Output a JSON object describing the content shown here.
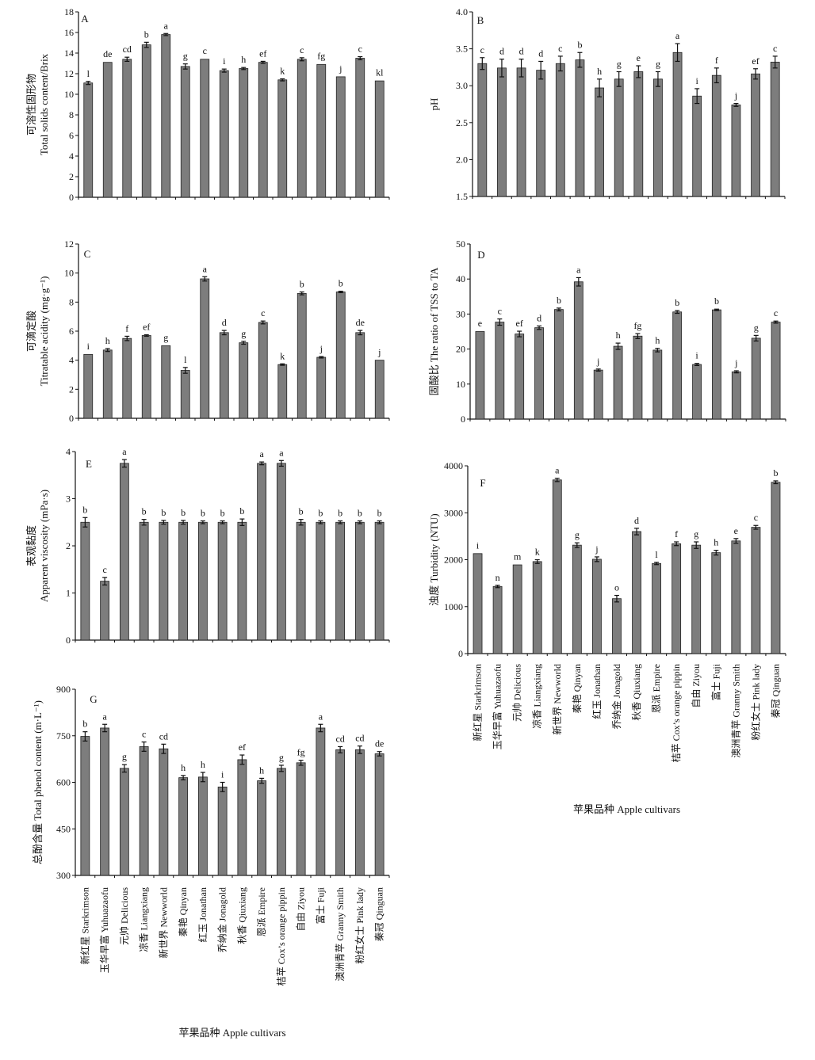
{
  "cultivars": [
    "新红星 Starkrimson",
    "玉华早富 Yuhuazaofu",
    "元帅 Delicious",
    "凉香 Liangxiang",
    "新世界 Newworld",
    "秦艳 Qinyan",
    "红玉 Jonathan",
    "乔纳金 Jonagold",
    "秋香 Qiuxiang",
    "恩派 Empire",
    "桔苹 Cox’s orange pippin",
    "自由 Ziyou",
    "富士 Fuji",
    "澳洲青苹 Granny Smith",
    "粉红女士 Pink lady",
    "秦冠 Qinguan"
  ],
  "x_axis_label": "苹果品种 Apple cultivars",
  "bar_color": "#7d7d7d",
  "chart_data": [
    {
      "type": "bar",
      "panel": "A",
      "ylabel_lines": [
        "可溶性固形物",
        "Total solids content/Brix"
      ],
      "ylim": [
        0,
        18
      ],
      "yticks": [
        "0",
        "2",
        "4",
        "6",
        "8",
        "10",
        "12",
        "14",
        "16",
        "18"
      ],
      "values": [
        11.1,
        13.1,
        13.4,
        14.8,
        15.8,
        12.7,
        13.4,
        12.3,
        12.5,
        13.1,
        11.4,
        13.4,
        12.9,
        11.7,
        13.5,
        11.3
      ],
      "errors": [
        0.15,
        0.05,
        0.2,
        0.25,
        0.1,
        0.25,
        0.05,
        0.15,
        0.1,
        0.1,
        0.1,
        0.15,
        0.05,
        0.05,
        0.15,
        0.05
      ],
      "letters": [
        "l",
        "de",
        "cd",
        "b",
        "a",
        "g",
        "c",
        "i",
        "h",
        "ef",
        "k",
        "c",
        "fg",
        "j",
        "c",
        "kl"
      ]
    },
    {
      "type": "bar",
      "panel": "B",
      "ylabel_lines": [
        "pH"
      ],
      "ylim": [
        1.5,
        4.0
      ],
      "yticks": [
        "1.5",
        "2.0",
        "2.5",
        "3.0",
        "3.5",
        "4.0"
      ],
      "values": [
        3.3,
        3.24,
        3.24,
        3.21,
        3.3,
        3.35,
        2.97,
        3.09,
        3.19,
        3.09,
        3.45,
        2.86,
        3.14,
        2.74,
        3.16,
        3.32
      ],
      "errors": [
        0.08,
        0.12,
        0.12,
        0.12,
        0.1,
        0.1,
        0.12,
        0.1,
        0.08,
        0.1,
        0.12,
        0.1,
        0.1,
        0.02,
        0.07,
        0.08
      ],
      "letters": [
        "c",
        "d",
        "d",
        "d",
        "c",
        "b",
        "h",
        "g",
        "e",
        "g",
        "a",
        "i",
        "f",
        "j",
        "ef",
        "c"
      ]
    },
    {
      "type": "bar",
      "panel": "C",
      "ylabel_lines": [
        "可滴定酸",
        "Titratable acidity (mg·g⁻¹)"
      ],
      "ylim": [
        0,
        12
      ],
      "yticks": [
        "0",
        "2",
        "4",
        "6",
        "8",
        "10",
        "12"
      ],
      "values": [
        4.4,
        4.7,
        5.5,
        5.7,
        5.0,
        3.3,
        9.6,
        5.9,
        5.2,
        6.6,
        3.7,
        8.6,
        4.2,
        8.7,
        5.9,
        4.0
      ],
      "errors": [
        0.02,
        0.1,
        0.15,
        0.05,
        0.02,
        0.2,
        0.15,
        0.15,
        0.1,
        0.1,
        0.05,
        0.1,
        0.05,
        0.05,
        0.15,
        0.02
      ],
      "letters": [
        "i",
        "h",
        "f",
        "ef",
        "g",
        "l",
        "a",
        "d",
        "g",
        "c",
        "k",
        "b",
        "j",
        "b",
        "de",
        "j"
      ]
    },
    {
      "type": "bar",
      "panel": "D",
      "ylabel_lines": [
        "固酸比 The ratio of TSS to TA"
      ],
      "ylim": [
        0,
        50
      ],
      "yticks": [
        "0",
        "10",
        "20",
        "30",
        "40",
        "50"
      ],
      "values": [
        25.0,
        27.7,
        24.3,
        26.1,
        31.3,
        39.2,
        14.0,
        20.8,
        23.7,
        19.7,
        30.6,
        15.6,
        31.2,
        13.5,
        23.1,
        27.7
      ],
      "errors": [
        0.1,
        0.9,
        0.8,
        0.5,
        0.4,
        1.2,
        0.3,
        0.9,
        0.7,
        0.5,
        0.4,
        0.3,
        0.2,
        0.3,
        0.8,
        0.3
      ],
      "letters": [
        "e",
        "c",
        "ef",
        "d",
        "b",
        "a",
        "j",
        "h",
        "fg",
        "h",
        "b",
        "i",
        "b",
        "j",
        "g",
        "c"
      ]
    },
    {
      "type": "bar",
      "panel": "E",
      "ylabel_lines": [
        "表观黏度",
        "Apparent viscosity (mPa·s)"
      ],
      "ylim": [
        0,
        4
      ],
      "yticks": [
        "0",
        "1",
        "2",
        "3",
        "4"
      ],
      "values": [
        2.5,
        1.25,
        3.75,
        2.5,
        2.5,
        2.5,
        2.5,
        2.5,
        2.5,
        3.75,
        3.75,
        2.5,
        2.5,
        2.5,
        2.5,
        2.5
      ],
      "errors": [
        0.1,
        0.08,
        0.08,
        0.06,
        0.04,
        0.04,
        0.03,
        0.03,
        0.07,
        0.03,
        0.06,
        0.06,
        0.03,
        0.03,
        0.03,
        0.03
      ],
      "letters": [
        "b",
        "c",
        "a",
        "b",
        "b",
        "b",
        "b",
        "b",
        "b",
        "a",
        "a",
        "b",
        "b",
        "b",
        "b",
        "b"
      ]
    },
    {
      "type": "bar",
      "panel": "F",
      "ylabel_lines": [
        "浊度 Turbidity (NTU)"
      ],
      "ylim": [
        0,
        4000
      ],
      "yticks": [
        "0",
        "1000",
        "2000",
        "3000",
        "4000"
      ],
      "values": [
        2130,
        1430,
        1890,
        1960,
        3700,
        2310,
        2010,
        1170,
        2600,
        1920,
        2340,
        2310,
        2150,
        2400,
        2690,
        3650
      ],
      "errors": [
        5,
        25,
        10,
        40,
        35,
        50,
        50,
        70,
        70,
        25,
        40,
        70,
        50,
        50,
        40,
        30
      ],
      "letters": [
        "i",
        "n",
        "m",
        "k",
        "a",
        "g",
        "j",
        "o",
        "d",
        "l",
        "f",
        "g",
        "h",
        "e",
        "c",
        "b"
      ]
    },
    {
      "type": "bar",
      "panel": "G",
      "ylabel_lines": [
        "总酚含量 Total phenol content (m·L⁻¹)"
      ],
      "ylim": [
        300,
        900
      ],
      "yticks": [
        "300",
        "450",
        "600",
        "750",
        "900"
      ],
      "values": [
        748,
        775,
        645,
        715,
        708,
        615,
        617,
        585,
        673,
        605,
        645,
        663,
        775,
        705,
        705,
        692
      ],
      "errors": [
        15,
        12,
        12,
        15,
        15,
        7,
        15,
        15,
        15,
        8,
        10,
        8,
        12,
        10,
        12,
        7
      ],
      "letters": [
        "b",
        "a",
        "g",
        "c",
        "cd",
        "h",
        "h",
        "i",
        "ef",
        "h",
        "g",
        "fg",
        "a",
        "cd",
        "cd",
        "de"
      ]
    }
  ]
}
